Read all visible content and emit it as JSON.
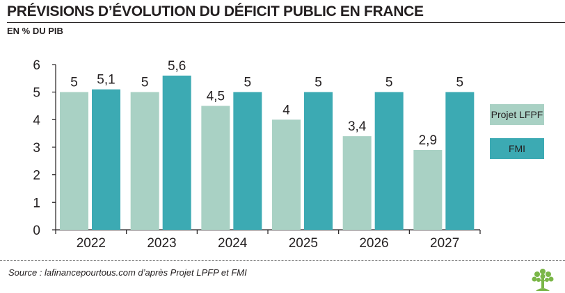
{
  "header": {
    "title": "PRÉVISIONS D’ÉVOLUTION DU DÉFICIT PUBLIC EN FRANCE",
    "subtitle": "EN % DU PIB"
  },
  "footer": {
    "source": "Source : lafinancepourtous.com d’après Projet LPFP et FMI"
  },
  "colors": {
    "lfpf": "#a9d1c4",
    "fmi": "#3caab3",
    "axis": "#231f20",
    "logo": "#7ab648"
  },
  "chart_data": {
    "type": "bar",
    "title": "PRÉVISIONS D’ÉVOLUTION DU DÉFICIT PUBLIC EN FRANCE",
    "ylabel": "EN % DU PIB",
    "xlabel": "",
    "categories": [
      "2022",
      "2023",
      "2024",
      "2025",
      "2026",
      "2027"
    ],
    "series": [
      {
        "name": "Projet LFPF",
        "values": [
          5,
          5,
          4.5,
          4,
          3.4,
          2.9
        ],
        "labels": [
          "5",
          "5",
          "4,5",
          "4",
          "3,4",
          "2,9"
        ]
      },
      {
        "name": "FMI",
        "values": [
          5.1,
          5.6,
          5,
          5,
          5,
          5
        ],
        "labels": [
          "5,1",
          "5,6",
          "5",
          "5",
          "5",
          "5"
        ]
      }
    ],
    "ylim": [
      0,
      6
    ],
    "yticks": [
      "0",
      "1",
      "2",
      "3",
      "4",
      "5",
      "6"
    ],
    "grid": false,
    "legend": "right"
  }
}
